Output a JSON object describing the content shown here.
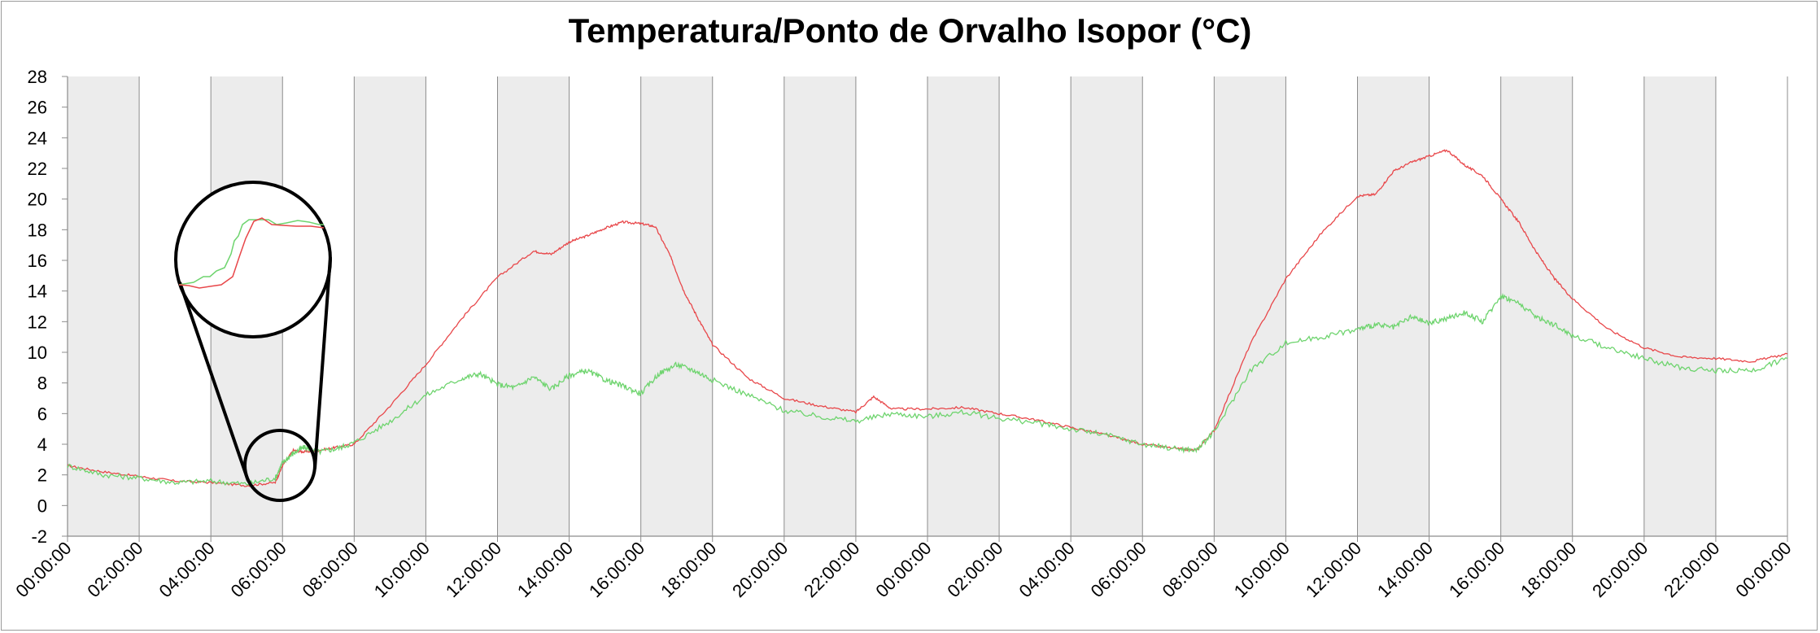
{
  "chart_data": {
    "type": "line",
    "title": "Temperatura/Ponto de Orvalho Isopor (°C)",
    "xlabel": "",
    "ylabel": "",
    "ylim": [
      -2,
      28
    ],
    "yticks": [
      -2,
      0,
      2,
      4,
      6,
      8,
      10,
      12,
      14,
      16,
      18,
      20,
      22,
      24,
      26,
      28
    ],
    "xlim_hours": [
      0,
      48
    ],
    "xtick_labels": [
      "00:00:00",
      "02:00:00",
      "04:00:00",
      "06:00:00",
      "08:00:00",
      "10:00:00",
      "12:00:00",
      "14:00:00",
      "16:00:00",
      "18:00:00",
      "20:00:00",
      "22:00:00",
      "00:00:00",
      "02:00:00",
      "04:00:00",
      "06:00:00",
      "08:00:00",
      "10:00:00",
      "12:00:00",
      "14:00:00",
      "16:00:00",
      "18:00:00",
      "20:00:00",
      "22:00:00",
      "00:00:00"
    ],
    "background_bands": "alternating grey every 2 hours",
    "grid": "vertical lines every 2 hours",
    "legend": "none",
    "series": [
      {
        "color": "#e8474a",
        "x_hours": [
          0,
          1,
          2,
          3,
          4,
          5,
          5.8,
          6,
          6.3,
          6.6,
          7,
          7.5,
          8,
          9,
          10,
          11,
          12,
          13,
          13.5,
          14,
          14.5,
          15,
          15.5,
          16,
          16.4,
          16.8,
          17.2,
          17.6,
          18,
          19,
          20,
          21,
          22,
          22.5,
          23,
          24,
          25,
          26,
          27,
          28,
          29,
          30,
          31,
          31.5,
          32,
          33,
          34,
          35,
          36,
          36.5,
          37,
          37.5,
          38,
          38.5,
          39,
          39.5,
          40,
          40.5,
          41,
          41.5,
          42,
          43,
          44,
          45,
          46,
          47,
          48
        ],
        "y": [
          2.6,
          2.2,
          1.9,
          1.6,
          1.5,
          1.3,
          1.5,
          2.6,
          3.6,
          3.5,
          3.6,
          3.8,
          4.0,
          6.5,
          9.2,
          12.2,
          14.9,
          16.6,
          16.4,
          17.2,
          17.6,
          18.1,
          18.5,
          18.4,
          18.2,
          16.4,
          14.0,
          12.2,
          10.5,
          8.3,
          7.0,
          6.5,
          6.1,
          7.1,
          6.3,
          6.3,
          6.4,
          6.0,
          5.6,
          5.1,
          4.6,
          4.0,
          3.7,
          3.6,
          4.9,
          10.5,
          14.8,
          17.8,
          20.2,
          20.3,
          21.8,
          22.4,
          22.8,
          23.2,
          22.2,
          21.5,
          20.0,
          18.5,
          16.5,
          14.8,
          13.5,
          11.5,
          10.3,
          9.7,
          9.6,
          9.4,
          9.9
        ]
      },
      {
        "color": "#6ed46e",
        "x_hours": [
          0,
          1,
          2,
          3,
          4,
          5,
          5.8,
          6,
          6.3,
          6.6,
          7,
          7.5,
          8,
          9,
          10,
          11,
          11.5,
          12,
          12.5,
          13,
          13.5,
          14,
          14.5,
          15,
          15.5,
          16,
          16.5,
          17,
          17.5,
          18,
          19,
          20,
          21,
          22,
          23,
          24,
          25,
          26,
          27,
          28,
          29,
          30,
          31,
          31.5,
          32,
          33,
          34,
          35,
          36,
          36.5,
          37,
          37.5,
          38,
          38.5,
          39,
          39.5,
          40,
          40.5,
          41,
          41.5,
          42,
          43,
          44,
          45,
          46,
          47,
          48
        ],
        "y": [
          2.6,
          2.0,
          1.8,
          1.5,
          1.6,
          1.4,
          1.8,
          2.8,
          3.4,
          3.8,
          3.5,
          3.7,
          4.1,
          5.5,
          7.2,
          8.3,
          8.6,
          7.9,
          7.7,
          8.4,
          7.6,
          8.5,
          8.8,
          8.2,
          7.8,
          7.3,
          8.6,
          9.2,
          8.8,
          8.2,
          7.2,
          6.2,
          5.8,
          5.5,
          6.0,
          5.8,
          6.1,
          5.7,
          5.4,
          5.0,
          4.6,
          4.0,
          3.7,
          3.6,
          4.8,
          8.8,
          10.6,
          11.0,
          11.5,
          11.8,
          11.6,
          12.3,
          11.9,
          12.2,
          12.6,
          12.0,
          13.7,
          13.2,
          12.3,
          11.8,
          11.1,
          10.3,
          9.6,
          9.0,
          8.8,
          8.8,
          9.6
        ]
      }
    ]
  },
  "zoom_callout": "magnified detail of the series around 06:00:00"
}
